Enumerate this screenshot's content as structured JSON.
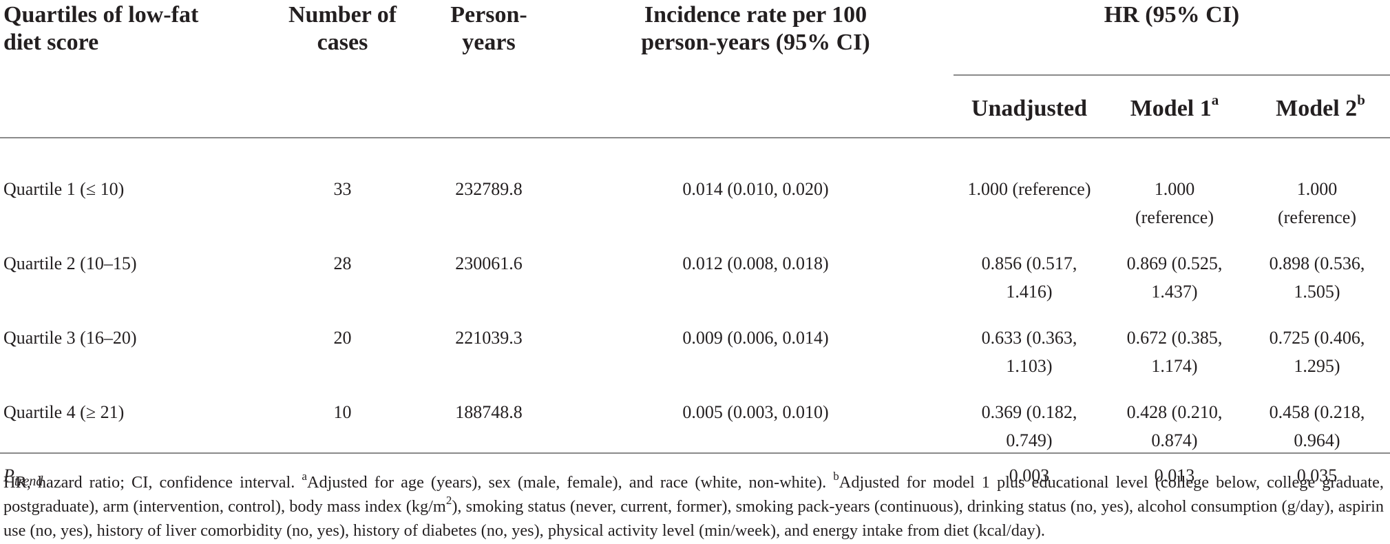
{
  "header": {
    "col1": "Quartiles of low-fat diet score",
    "col2": "Number of cases",
    "col3": "Person-years",
    "col4": "Incidence rate per 100 person-years (95% CI)",
    "hr_group": "HR (95% CI)",
    "sub1": "Unadjusted",
    "sub2": "Model 1",
    "sub2_sup": "a",
    "sub3": "Model 2",
    "sub3_sup": "b"
  },
  "rows": [
    {
      "label": "Quartile 1 (≤ 10)",
      "cases": "33",
      "person_years": "232789.8",
      "incidence": "0.014 (0.010, 0.020)",
      "unadjusted": "1.000 (reference)",
      "model1": "1.000 (reference)",
      "model2": "1.000 (reference)"
    },
    {
      "label": "Quartile 2 (10–15)",
      "cases": "28",
      "person_years": "230061.6",
      "incidence": "0.012 (0.008, 0.018)",
      "unadjusted": "0.856 (0.517, 1.416)",
      "model1": "0.869 (0.525, 1.437)",
      "model2": "0.898 (0.536, 1.505)"
    },
    {
      "label": "Quartile 3 (16–20)",
      "cases": "20",
      "person_years": "221039.3",
      "incidence": "0.009 (0.006, 0.014)",
      "unadjusted": "0.633 (0.363, 1.103)",
      "model1": "0.672 (0.385, 1.174)",
      "model2": "0.725 (0.406, 1.295)"
    },
    {
      "label": "Quartile 4 (≥ 21)",
      "cases": "10",
      "person_years": "188748.8",
      "incidence": "0.005 (0.003, 0.010)",
      "unadjusted": "0.369 (0.182, 0.749)",
      "model1": "0.428 (0.210, 0.874)",
      "model2": "0.458 (0.218, 0.964)"
    }
  ],
  "ptrend": {
    "label_main": "P",
    "label_sub": "trend",
    "unadjusted": "0.003",
    "model1": "0.013",
    "model2": "0.035"
  },
  "footnote": {
    "part1": "HR, hazard ratio; CI, confidence interval. ",
    "sup_a": "a",
    "part2": "Adjusted for age (years), sex (male, female), and race (white, non-white). ",
    "sup_b": "b",
    "part3": "Adjusted for model 1 plus educational level (college below, college graduate, postgraduate), arm (intervention, control), body mass index (kg/m",
    "sup_2": "2",
    "part4": "), smoking status (never, current, former), smoking pack-years (continuous), drinking status (no, yes), alcohol consumption (g/day), aspirin use (no, yes), history of liver comorbidity (no, yes), history of diabetes (no, yes), physical activity level (min/week), and energy intake from diet (kcal/day)."
  }
}
